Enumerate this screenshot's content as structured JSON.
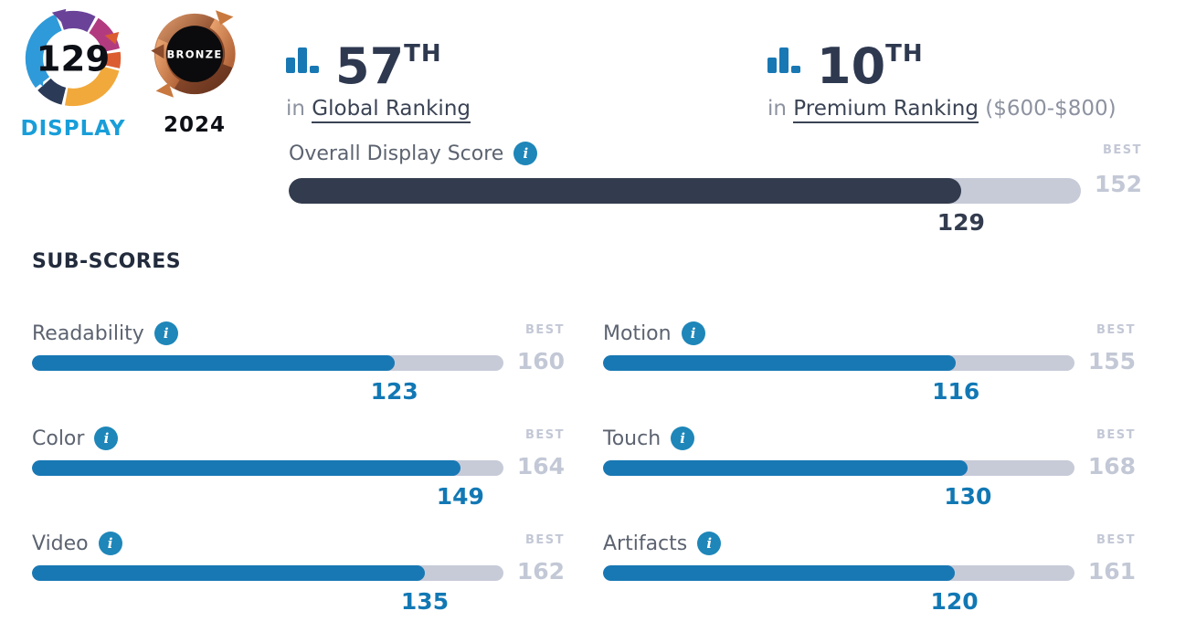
{
  "badges": {
    "display_score": "129",
    "display_label": "DISPLAY",
    "medal_label": "BRONZE",
    "medal_year": "2024"
  },
  "rankings": {
    "global": {
      "rank": "57",
      "suffix": "TH",
      "prefix": "in ",
      "link": "Global Ranking",
      "note": ""
    },
    "premium": {
      "rank": "10",
      "suffix": "TH",
      "prefix": "in ",
      "link": "Premium Ranking",
      "note": " ($600-$800)"
    }
  },
  "labels": {
    "best": "BEST"
  },
  "overall": {
    "label": "Overall Display Score",
    "score": 129,
    "best": 152
  },
  "subscores_title": "SUB-SCORES",
  "subscores": [
    {
      "label": "Readability",
      "score": 123,
      "best": 160
    },
    {
      "label": "Color",
      "score": 149,
      "best": 164
    },
    {
      "label": "Video",
      "score": 135,
      "best": 162
    },
    {
      "label": "Motion",
      "score": 116,
      "best": 155
    },
    {
      "label": "Touch",
      "score": 130,
      "best": 168
    },
    {
      "label": "Artifacts",
      "score": 120,
      "best": 161
    }
  ],
  "colors": {
    "overall_fill": "#333C4E",
    "sub_fill": "#1878B4",
    "track": "#C7CBD8",
    "best_text": "#C3C8D6",
    "label_text": "#5C6370",
    "rank_text": "#2E3950",
    "muted_text": "#8D92A0",
    "info_icon_bg": "#1E86B9",
    "display_brand_blue": "#189ED9",
    "sub_score_text": "#1278B4"
  },
  "chart_data": {
    "type": "bar",
    "title": "Display scores",
    "overall": {
      "label": "Overall Display Score",
      "score": 129,
      "best": 152
    },
    "categories": [
      "Readability",
      "Color",
      "Video",
      "Motion",
      "Touch",
      "Artifacts"
    ],
    "series": [
      {
        "name": "score",
        "values": [
          123,
          149,
          135,
          116,
          130,
          120
        ]
      },
      {
        "name": "best",
        "values": [
          160,
          164,
          162,
          155,
          168,
          161
        ]
      }
    ],
    "layout": "two-column horizontal gauges, score bar filled to score/best",
    "xlim_rule": "each bar spans 0 to its BEST value"
  }
}
